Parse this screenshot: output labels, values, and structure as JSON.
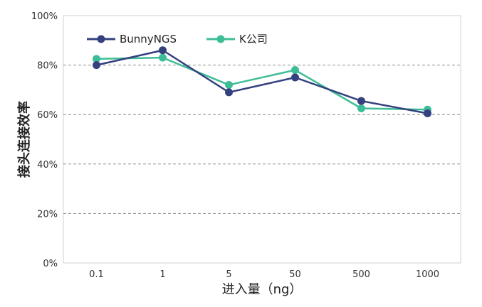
{
  "chart_data": {
    "type": "line",
    "categories": [
      "0.1",
      "1",
      "5",
      "50",
      "500",
      "1000"
    ],
    "xlabel": "进入量（ng）",
    "ylabel": "接头连接效率",
    "ylim": [
      0,
      100
    ],
    "yticks": [
      "0%",
      "20%",
      "40%",
      "60%",
      "80%",
      "100%"
    ],
    "grid": "horizontal dashed",
    "legend": "top-left",
    "series": [
      {
        "name": "BunnyNGS",
        "color": "#35407f",
        "values": [
          80,
          86,
          69,
          75,
          65.5,
          60.5
        ]
      },
      {
        "name": "K公司",
        "color": "#3dbd97",
        "values": [
          82.5,
          83,
          72,
          78,
          62.5,
          62
        ]
      }
    ]
  }
}
